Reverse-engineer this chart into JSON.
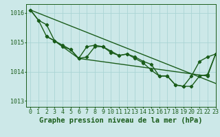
{
  "xlabel": "Graphe pression niveau de la mer (hPa)",
  "bg_color": "#cce8e8",
  "grid_color": "#aad4d4",
  "line_color": "#1a5c1a",
  "marker_color": "#1a5c1a",
  "ylim": [
    1012.8,
    1016.3
  ],
  "xlim": [
    -0.5,
    23
  ],
  "yticks": [
    1013,
    1014,
    1015,
    1016
  ],
  "ytick_labels": [
    "1013",
    "1014",
    "1015",
    "1016"
  ],
  "xtick_labels": [
    "0",
    "1",
    "2",
    "3",
    "4",
    "5",
    "6",
    "7",
    "8",
    "9",
    "10",
    "11",
    "12",
    "13",
    "14",
    "15",
    "16",
    "17",
    "18",
    "19",
    "20",
    "21",
    "22",
    "23"
  ],
  "series1_x": [
    0,
    1,
    2,
    3,
    4,
    5,
    6,
    7,
    8,
    9,
    10,
    11,
    12,
    13,
    14,
    15,
    16,
    17,
    18,
    19,
    20,
    21,
    22,
    23
  ],
  "series1_y": [
    1016.1,
    1015.75,
    1015.6,
    1015.05,
    1014.9,
    1014.75,
    1014.45,
    1014.85,
    1014.9,
    1014.85,
    1014.7,
    1014.55,
    1014.6,
    1014.5,
    1014.35,
    1014.25,
    1013.85,
    1013.85,
    1013.55,
    1013.5,
    1013.85,
    1014.35,
    1014.5,
    1014.6
  ],
  "series2_x": [
    0,
    1,
    2,
    3,
    4,
    5,
    6,
    7,
    8,
    9,
    10,
    11,
    12,
    13,
    14,
    15,
    16,
    17,
    18,
    19,
    20,
    21,
    22,
    23
  ],
  "series2_y": [
    1016.1,
    1015.75,
    1015.2,
    1015.05,
    1014.85,
    1014.75,
    1014.45,
    1014.5,
    1014.85,
    1014.85,
    1014.65,
    1014.55,
    1014.6,
    1014.45,
    1014.3,
    1014.05,
    1013.85,
    1013.85,
    1013.55,
    1013.5,
    1013.5,
    1013.85,
    1013.9,
    1014.6
  ],
  "series3_x": [
    0,
    23
  ],
  "series3_y": [
    1016.1,
    1013.6
  ],
  "series4_x": [
    2,
    3,
    6,
    22,
    23
  ],
  "series4_y": [
    1015.2,
    1015.05,
    1014.45,
    1013.85,
    1014.6
  ],
  "xlabel_fontsize": 7.5,
  "tick_fontsize": 6,
  "linewidth": 1.0,
  "markersize": 2.2
}
